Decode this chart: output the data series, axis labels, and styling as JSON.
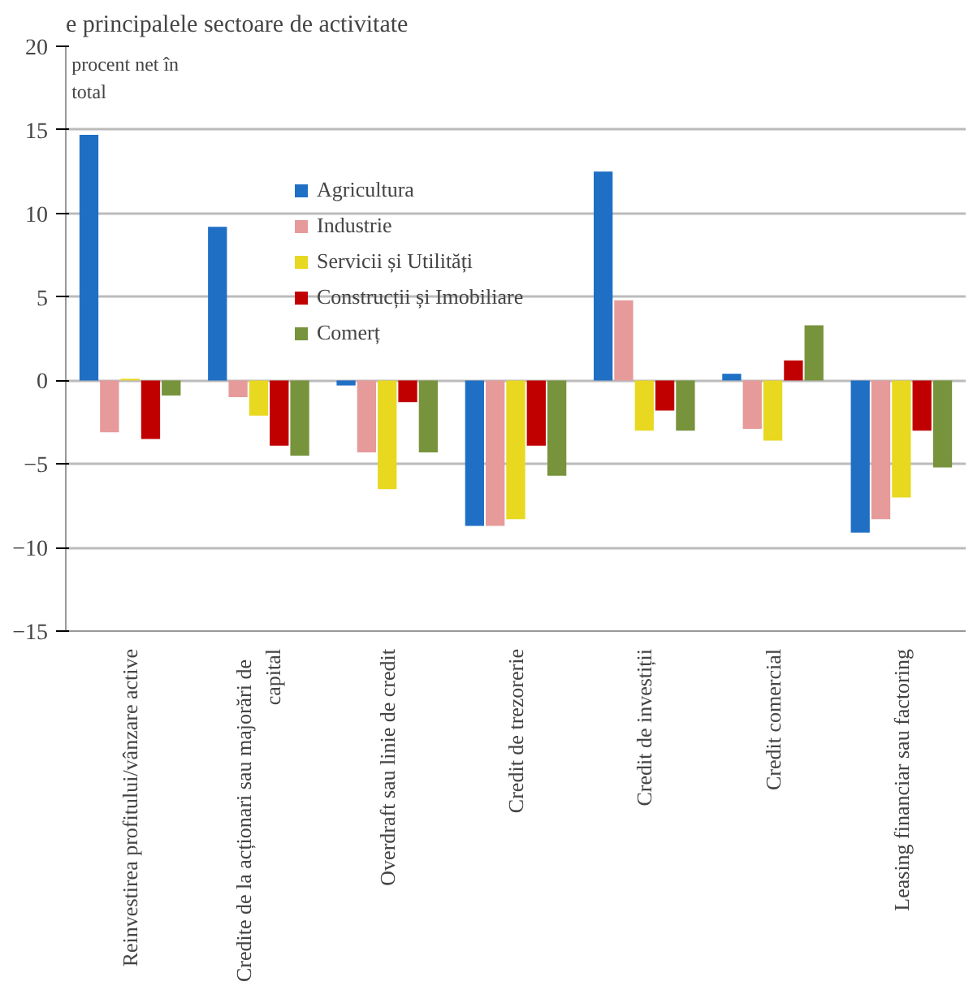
{
  "chart_data": {
    "type": "bar",
    "title": "e principalele sectoare de activitate",
    "categories": [
      "Reinvestirea profitului/vânzare active",
      "Credite de la acționari  sau majorări  de\ncapital",
      "Overdraft sau linie de credit",
      "Credit de trezorerie",
      "Credit de investiții",
      "Credit comercial",
      "Leasing financiar sau factoring"
    ],
    "series": [
      {
        "name": "Agricultura",
        "color": "#1f6fc5",
        "values": [
          14.7,
          9.2,
          -0.3,
          -8.7,
          12.5,
          0.4,
          -9.1
        ]
      },
      {
        "name": "Industrie",
        "color": "#e69a9a",
        "values": [
          -3.1,
          -1.0,
          -4.3,
          -8.7,
          4.8,
          -2.9,
          -8.3
        ]
      },
      {
        "name": "Servicii și Utilități",
        "color": "#e8d820",
        "values": [
          0.1,
          -2.1,
          -6.5,
          -8.3,
          -3.0,
          -3.6,
          -7.0
        ]
      },
      {
        "name": "Construcții și Imobiliare",
        "color": "#c00000",
        "values": [
          -3.5,
          -3.9,
          -1.3,
          -3.9,
          -1.8,
          1.2,
          -3.0
        ]
      },
      {
        "name": "Comerț",
        "color": "#77933c",
        "values": [
          -0.9,
          -4.5,
          -4.3,
          -5.7,
          -3.0,
          3.3,
          -5.2
        ]
      }
    ],
    "annotations": [
      "procent net în\ntotal"
    ],
    "ylim": [
      -15,
      20
    ],
    "yticks": [
      -15,
      -10,
      -5,
      0,
      5,
      10,
      15,
      20
    ],
    "grid": "y",
    "legend": "top"
  }
}
